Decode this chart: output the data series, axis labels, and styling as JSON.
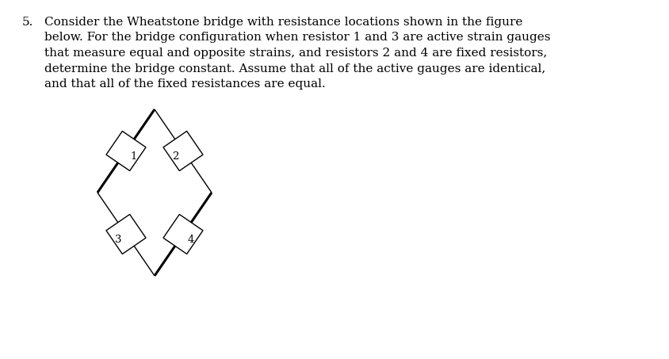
{
  "title_number": "5.",
  "text_lines": [
    "Consider the Wheatstone bridge with resistance locations shown in the figure",
    "below. For the bridge configuration when resistor 1 and 3 are active strain gauges",
    "that measure equal and opposite strains, and resistors 2 and 4 are fixed resistors,",
    "determine the bridge constant. Assume that all of the active gauges are identical,",
    "and that all of the fixed resistances are equal."
  ],
  "background_color": "#ffffff",
  "text_color": "#000000",
  "line_color": "#000000",
  "font_size_text": 11.0,
  "font_size_label": 9.5,
  "fig_width": 8.44,
  "fig_height": 4.53,
  "dpi": 100
}
